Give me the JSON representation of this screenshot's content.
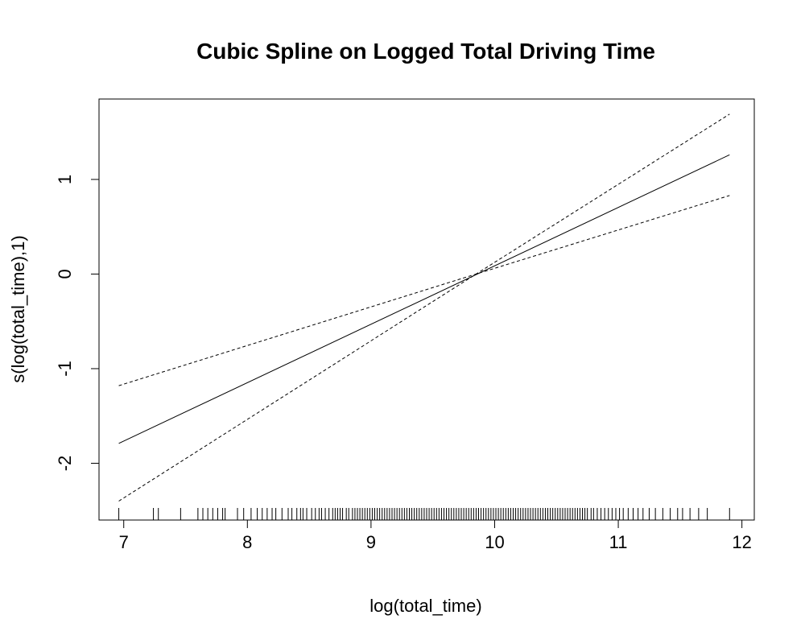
{
  "chart_data": {
    "type": "line",
    "title": "Cubic Spline on Logged Total Driving Time",
    "xlabel": "log(total_time)",
    "ylabel": "s(log(total_time),1)",
    "xlim": [
      6.8,
      12.1
    ],
    "ylim": [
      -2.6,
      1.85
    ],
    "xticks": [
      7,
      8,
      9,
      10,
      11,
      12
    ],
    "yticks": [
      -2,
      -1,
      0,
      1
    ],
    "grid": false,
    "series": [
      {
        "style": "solid",
        "x": [
          6.96,
          11.9
        ],
        "y": [
          -1.79,
          1.26
        ]
      },
      {
        "style": "dashed",
        "x": [
          6.96,
          9.85,
          11.9
        ],
        "y": [
          -1.18,
          0.0,
          0.83
        ]
      },
      {
        "style": "dashed",
        "x": [
          6.96,
          9.85,
          11.9
        ],
        "y": [
          -2.4,
          0.0,
          1.69
        ]
      }
    ],
    "rug": {
      "position": "bottom",
      "x": [
        6.96,
        7.24,
        7.28,
        7.46,
        7.6,
        7.64,
        7.68,
        7.72,
        7.76,
        7.8,
        7.82,
        7.92,
        7.97,
        8.03,
        8.08,
        8.12,
        8.16,
        8.2,
        8.23,
        8.28,
        8.33,
        8.36,
        8.4,
        8.43,
        8.45,
        8.48,
        8.52,
        8.55,
        8.58,
        8.6,
        8.63,
        8.66,
        8.69,
        8.71,
        8.73,
        8.75,
        8.77,
        8.8,
        8.82,
        8.85,
        8.87,
        8.89,
        8.91,
        8.93,
        8.95,
        8.97,
        8.99,
        9.01,
        9.03,
        9.05,
        9.07,
        9.09,
        9.11,
        9.13,
        9.15,
        9.17,
        9.19,
        9.21,
        9.23,
        9.25,
        9.27,
        9.29,
        9.31,
        9.33,
        9.35,
        9.37,
        9.39,
        9.41,
        9.43,
        9.45,
        9.47,
        9.49,
        9.51,
        9.53,
        9.55,
        9.57,
        9.59,
        9.61,
        9.63,
        9.65,
        9.67,
        9.69,
        9.71,
        9.73,
        9.75,
        9.77,
        9.79,
        9.81,
        9.83,
        9.85,
        9.87,
        9.89,
        9.91,
        9.93,
        9.95,
        9.97,
        9.99,
        10.01,
        10.03,
        10.05,
        10.07,
        10.09,
        10.11,
        10.13,
        10.15,
        10.17,
        10.19,
        10.21,
        10.23,
        10.25,
        10.27,
        10.29,
        10.31,
        10.33,
        10.35,
        10.37,
        10.39,
        10.41,
        10.43,
        10.45,
        10.47,
        10.49,
        10.51,
        10.53,
        10.55,
        10.57,
        10.59,
        10.61,
        10.63,
        10.65,
        10.67,
        10.69,
        10.71,
        10.73,
        10.75,
        10.78,
        10.8,
        10.83,
        10.86,
        10.89,
        10.92,
        10.95,
        10.98,
        11.01,
        11.04,
        11.08,
        11.12,
        11.16,
        11.2,
        11.25,
        11.3,
        11.36,
        11.42,
        11.48,
        11.52,
        11.58,
        11.65,
        11.72,
        11.9
      ]
    }
  }
}
